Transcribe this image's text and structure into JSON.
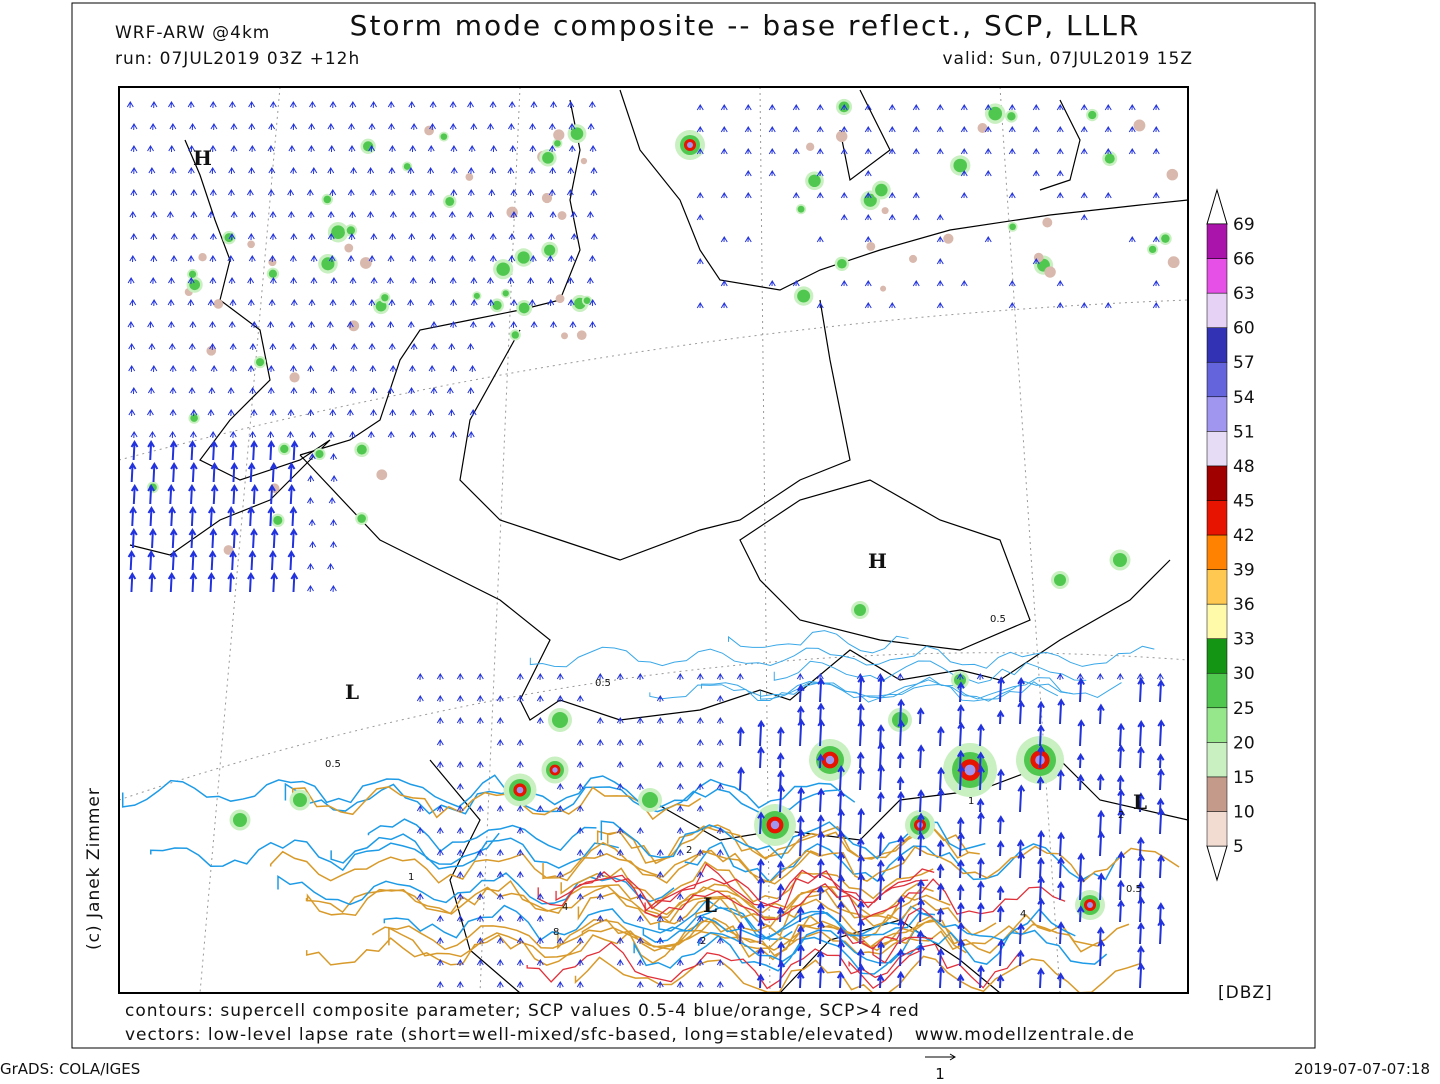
{
  "header": {
    "model": "WRF-ARW @4km",
    "title": "Storm mode composite -- base reflect., SCP, LLLR",
    "run": "run: 07JUL2019 03Z +12h",
    "valid": "valid: Sun, 07JUL2019 15Z"
  },
  "colorbar": {
    "unit": "[DBZ]",
    "levels": [
      5,
      10,
      15,
      20,
      25,
      30,
      33,
      36,
      39,
      42,
      45,
      48,
      51,
      54,
      57,
      60,
      63,
      66,
      69
    ],
    "colors": [
      "#f2dcd2",
      "#c49a8a",
      "#c8f0c0",
      "#96e68c",
      "#50c850",
      "#149614",
      "#fffaaa",
      "#ffc850",
      "#ff8200",
      "#e61400",
      "#a00000",
      "#e6dcf5",
      "#a096f0",
      "#6464dc",
      "#3232b4",
      "#e6d2f5",
      "#e650e6",
      "#aa14aa"
    ]
  },
  "map": {
    "pressure_centers": [
      "H",
      "H",
      "L",
      "L",
      "L"
    ],
    "contour_labels": [
      "0.5",
      "0.5",
      "0.5",
      "1",
      "2",
      "4",
      "8",
      "2",
      "1",
      "0.5",
      "2",
      "4"
    ]
  },
  "footer": {
    "contours": "contours: supercell composite parameter; SCP values 0.5-4 blue/orange, SCP>4 red",
    "vectors": "vectors: low-level lapse rate (short=well-mixed/sfc-based, long=stable/elevated)",
    "website": "www.modellzentrale.de",
    "credit": "(c) Janek Zimmer",
    "software": "GrADS: COLA/IGES",
    "timestamp": "2019-07-07-07:18",
    "vector_scale": "1"
  }
}
